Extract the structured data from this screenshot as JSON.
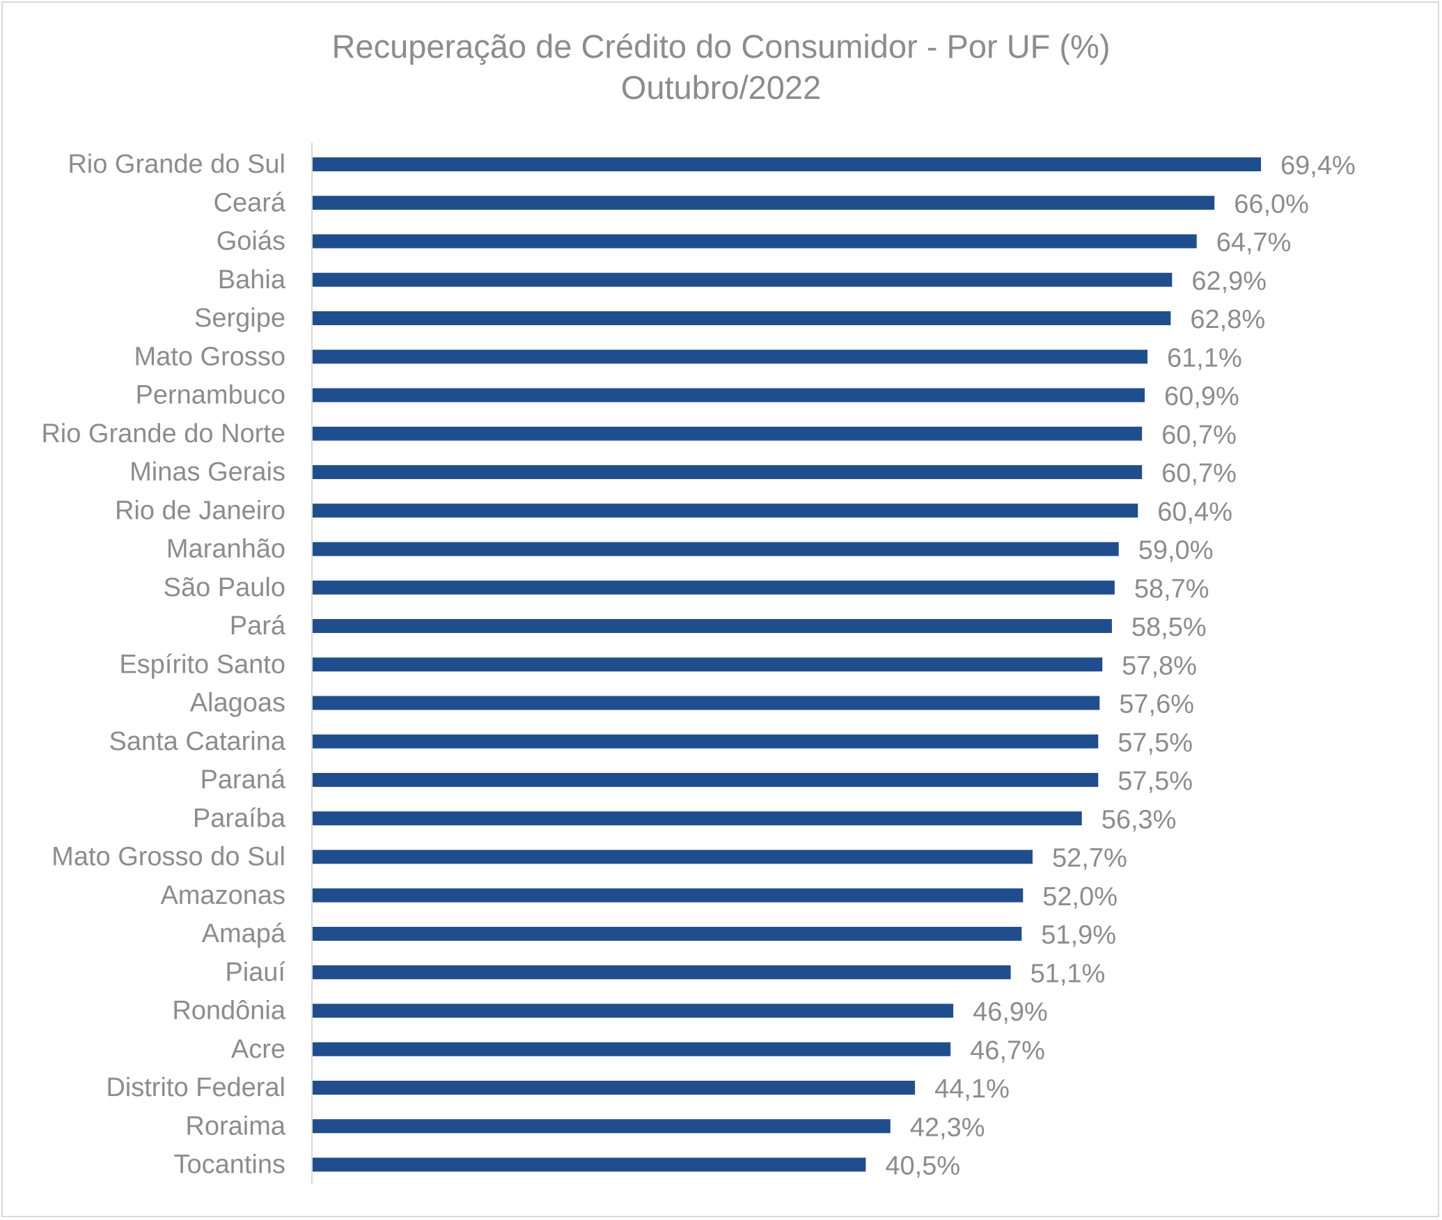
{
  "chart_data": {
    "type": "bar",
    "orientation": "horizontal",
    "title": "Recuperação de Crédito do Consumidor - Por UF (%)",
    "subtitle": "Outubro/2022",
    "categories": [
      "Rio Grande do Sul",
      "Ceará",
      "Goiás",
      "Bahia",
      "Sergipe",
      "Mato Grosso",
      "Pernambuco",
      "Rio Grande do Norte",
      "Minas Gerais",
      "Rio de Janeiro",
      "Maranhão",
      "São Paulo",
      "Pará",
      "Espírito Santo",
      "Alagoas",
      "Santa Catarina",
      "Paraná",
      "Paraíba",
      "Mato Grosso do Sul",
      "Amazonas",
      "Amapá",
      "Piauí",
      "Rondônia",
      "Acre",
      "Distrito Federal",
      "Roraima",
      "Tocantins"
    ],
    "values": [
      69.4,
      66.0,
      64.7,
      62.9,
      62.8,
      61.1,
      60.9,
      60.7,
      60.7,
      60.4,
      59.0,
      58.7,
      58.5,
      57.8,
      57.6,
      57.5,
      57.5,
      56.3,
      52.7,
      52.0,
      51.9,
      51.1,
      46.9,
      46.7,
      44.1,
      42.3,
      40.5
    ],
    "value_labels": [
      "69,4%",
      "66,0%",
      "64,7%",
      "62,9%",
      "62,8%",
      "61,1%",
      "60,9%",
      "60,7%",
      "60,7%",
      "60,4%",
      "59,0%",
      "58,7%",
      "58,5%",
      "57,8%",
      "57,6%",
      "57,5%",
      "57,5%",
      "56,3%",
      "52,7%",
      "52,0%",
      "51,9%",
      "51,1%",
      "46,9%",
      "46,7%",
      "44,1%",
      "42,3%",
      "40,5%"
    ],
    "xlim": [
      0,
      69.4
    ],
    "grid": false,
    "legend": "none",
    "bar_color": "#1f4e8f",
    "text_color": "#8c8c8c",
    "axis_color": "#d9d9d9"
  }
}
